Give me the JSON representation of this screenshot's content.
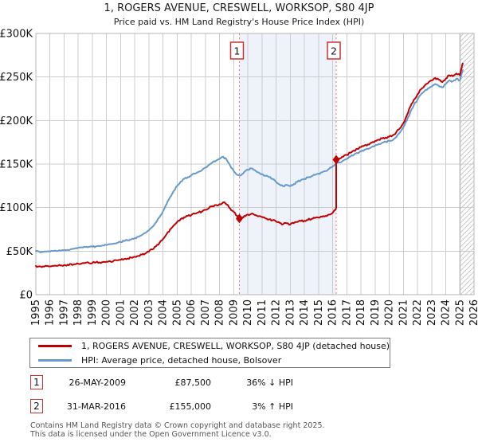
{
  "title": {
    "line1": "1, ROGERS AVENUE, CRESWELL, WORKSOP, S80 4JP",
    "line2": "Price paid vs. HM Land Registry's House Price Index (HPI)"
  },
  "colors": {
    "price_line": "#c00000",
    "hpi_line": "#6699cc",
    "grid": "#cccccc",
    "plot_border": "#b5b5b5",
    "shade": "#eef2fa",
    "sale_dash": "#e87878",
    "marker_border": "#cc3333",
    "hatch": "#c8c8c8"
  },
  "chart_data": {
    "type": "line",
    "title": "Price paid vs. HM Land Registry's House Price Index (HPI)",
    "xlabel": "",
    "ylabel": "",
    "x_axis": {
      "min": 1995,
      "max": 2026,
      "tick_step": 1
    },
    "y_axis": {
      "min": 0,
      "max": 300,
      "unit": "GBP thousands",
      "tick_values": [
        0,
        50,
        100,
        150,
        200,
        250,
        300
      ],
      "tick_labels": [
        "£0",
        "£50K",
        "£100K",
        "£150K",
        "£200K",
        "£250K",
        "£300K"
      ]
    },
    "grid": true,
    "legend_position": "below",
    "shaded_region": {
      "from_year": 2009.4,
      "to_year": 2016.25
    },
    "hatched_future_from_year": 2025,
    "sale_markers": [
      {
        "label": "1",
        "year": 2009.4,
        "price_gbp_k": 87.5
      },
      {
        "label": "2",
        "year": 2016.25,
        "price_gbp_k": 155
      }
    ],
    "series": [
      {
        "name": "HPI: Average price, detached house, Bolsover",
        "color_key": "hpi_line",
        "unit": "GBP thousands",
        "points": [
          [
            1995,
            50
          ],
          [
            1995.25,
            49.5
          ],
          [
            1995.5,
            49
          ],
          [
            1995.75,
            49.5
          ],
          [
            1996,
            49.5
          ],
          [
            1996.25,
            50
          ],
          [
            1996.5,
            50
          ],
          [
            1996.75,
            50.5
          ],
          [
            1997,
            51
          ],
          [
            1997.25,
            51.5
          ],
          [
            1997.5,
            52.5
          ],
          [
            1997.75,
            53
          ],
          [
            1998,
            54
          ],
          [
            1998.25,
            54.5
          ],
          [
            1998.5,
            55
          ],
          [
            1998.75,
            55
          ],
          [
            1999,
            55
          ],
          [
            1999.25,
            55.5
          ],
          [
            1999.5,
            56
          ],
          [
            1999.75,
            56.5
          ],
          [
            2000,
            57
          ],
          [
            2000.25,
            58
          ],
          [
            2000.5,
            58.5
          ],
          [
            2000.75,
            59.5
          ],
          [
            2001,
            60.5
          ],
          [
            2001.25,
            61.5
          ],
          [
            2001.5,
            62.5
          ],
          [
            2001.75,
            63.5
          ],
          [
            2002,
            65
          ],
          [
            2002.25,
            66.5
          ],
          [
            2002.5,
            68.5
          ],
          [
            2002.75,
            71
          ],
          [
            2003,
            74
          ],
          [
            2003.25,
            78
          ],
          [
            2003.5,
            83
          ],
          [
            2003.75,
            89
          ],
          [
            2004,
            96
          ],
          [
            2004.25,
            104
          ],
          [
            2004.5,
            112
          ],
          [
            2004.75,
            119
          ],
          [
            2005,
            125
          ],
          [
            2005.25,
            130
          ],
          [
            2005.5,
            133
          ],
          [
            2005.75,
            135
          ],
          [
            2006,
            137
          ],
          [
            2006.25,
            139
          ],
          [
            2006.5,
            141
          ],
          [
            2006.75,
            143
          ],
          [
            2007,
            146
          ],
          [
            2007.25,
            149
          ],
          [
            2007.5,
            152
          ],
          [
            2007.75,
            154
          ],
          [
            2008,
            156
          ],
          [
            2008.25,
            158.5
          ],
          [
            2008.5,
            155
          ],
          [
            2008.75,
            148
          ],
          [
            2009,
            142
          ],
          [
            2009.25,
            137.5
          ],
          [
            2009.4,
            136.7
          ],
          [
            2009.6,
            138.5
          ],
          [
            2009.75,
            141
          ],
          [
            2010,
            143.5
          ],
          [
            2010.25,
            145
          ],
          [
            2010.5,
            143
          ],
          [
            2010.75,
            140.5
          ],
          [
            2011,
            138.5
          ],
          [
            2011.25,
            136.5
          ],
          [
            2011.5,
            135
          ],
          [
            2011.75,
            133
          ],
          [
            2012,
            129.5
          ],
          [
            2012.25,
            126.5
          ],
          [
            2012.5,
            124.5
          ],
          [
            2012.75,
            126
          ],
          [
            2013,
            124.5
          ],
          [
            2013.25,
            127
          ],
          [
            2013.5,
            129.5
          ],
          [
            2013.75,
            131.5
          ],
          [
            2014,
            133
          ],
          [
            2014.25,
            134.5
          ],
          [
            2014.5,
            136
          ],
          [
            2014.75,
            137.5
          ],
          [
            2015,
            139
          ],
          [
            2015.25,
            140.5
          ],
          [
            2015.5,
            142
          ],
          [
            2015.75,
            144.5
          ],
          [
            2016,
            147.5
          ],
          [
            2016.25,
            150.4
          ],
          [
            2016.5,
            152
          ],
          [
            2016.75,
            154
          ],
          [
            2017,
            156
          ],
          [
            2017.25,
            158.5
          ],
          [
            2017.5,
            160.5
          ],
          [
            2017.75,
            162.5
          ],
          [
            2018,
            164.5
          ],
          [
            2018.25,
            166.5
          ],
          [
            2018.5,
            167.5
          ],
          [
            2018.75,
            169.5
          ],
          [
            2019,
            171.5
          ],
          [
            2019.25,
            173
          ],
          [
            2019.5,
            174.5
          ],
          [
            2019.75,
            175.5
          ],
          [
            2020,
            176.5
          ],
          [
            2020.25,
            177.5
          ],
          [
            2020.5,
            181
          ],
          [
            2020.75,
            186
          ],
          [
            2021,
            192
          ],
          [
            2021.25,
            200
          ],
          [
            2021.5,
            210
          ],
          [
            2021.75,
            218
          ],
          [
            2022,
            224
          ],
          [
            2022.25,
            230
          ],
          [
            2022.5,
            234
          ],
          [
            2022.75,
            237
          ],
          [
            2023,
            239
          ],
          [
            2023.25,
            242
          ],
          [
            2023.5,
            240
          ],
          [
            2023.75,
            238
          ],
          [
            2024,
            242
          ],
          [
            2024.25,
            246
          ],
          [
            2024.5,
            245
          ],
          [
            2024.75,
            248
          ],
          [
            2025,
            246
          ],
          [
            2025.1,
            252
          ],
          [
            2025.2,
            258
          ]
        ]
      },
      {
        "name": "1, ROGERS AVENUE, CRESWELL, WORKSOP, S80 4JP (detached house)",
        "color_key": "price_line",
        "unit": "GBP thousands",
        "points": [
          [
            1995,
            33
          ],
          [
            1995.25,
            32.5
          ],
          [
            1995.5,
            32.5
          ],
          [
            1995.75,
            33
          ],
          [
            1996,
            32.5
          ],
          [
            1996.25,
            33
          ],
          [
            1996.5,
            33
          ],
          [
            1996.75,
            33.5
          ],
          [
            1997,
            34
          ],
          [
            1997.25,
            34.5
          ],
          [
            1997.5,
            35
          ],
          [
            1997.75,
            35
          ],
          [
            1998,
            35.5
          ],
          [
            1998.25,
            36
          ],
          [
            1998.5,
            36.5
          ],
          [
            1998.75,
            36.5
          ],
          [
            1999,
            36.5
          ],
          [
            1999.25,
            37
          ],
          [
            1999.5,
            37
          ],
          [
            1999.75,
            37.5
          ],
          [
            2000,
            38
          ],
          [
            2000.25,
            38.5
          ],
          [
            2000.5,
            39
          ],
          [
            2000.75,
            39.5
          ],
          [
            2001,
            40
          ],
          [
            2001.25,
            41
          ],
          [
            2001.5,
            41.5
          ],
          [
            2001.75,
            42.5
          ],
          [
            2002,
            43.5
          ],
          [
            2002.25,
            44.5
          ],
          [
            2002.5,
            46
          ],
          [
            2002.75,
            47.5
          ],
          [
            2003,
            49.5
          ],
          [
            2003.25,
            52
          ],
          [
            2003.5,
            55.5
          ],
          [
            2003.75,
            59.5
          ],
          [
            2004,
            64
          ],
          [
            2004.25,
            69.5
          ],
          [
            2004.5,
            75
          ],
          [
            2004.75,
            79.5
          ],
          [
            2005,
            83.5
          ],
          [
            2005.25,
            87
          ],
          [
            2005.5,
            89
          ],
          [
            2005.75,
            90.5
          ],
          [
            2006,
            91.5
          ],
          [
            2006.25,
            93
          ],
          [
            2006.5,
            94.5
          ],
          [
            2006.75,
            95.5
          ],
          [
            2007,
            97.5
          ],
          [
            2007.25,
            99.5
          ],
          [
            2007.5,
            101.5
          ],
          [
            2007.75,
            103
          ],
          [
            2008,
            104
          ],
          [
            2008.25,
            106
          ],
          [
            2008.5,
            103.5
          ],
          [
            2008.75,
            99
          ],
          [
            2009,
            95
          ],
          [
            2009.25,
            90.5
          ],
          [
            2009.4,
            87.5
          ],
          [
            2009.6,
            89
          ],
          [
            2009.75,
            90.5
          ],
          [
            2010,
            92
          ],
          [
            2010.25,
            93
          ],
          [
            2010.5,
            91.5
          ],
          [
            2010.75,
            90
          ],
          [
            2011,
            89
          ],
          [
            2011.25,
            87.5
          ],
          [
            2011.5,
            86.5
          ],
          [
            2011.75,
            85.5
          ],
          [
            2012,
            84
          ],
          [
            2012.25,
            82.5
          ],
          [
            2012.5,
            81
          ],
          [
            2012.75,
            82
          ],
          [
            2013,
            80.5
          ],
          [
            2013.25,
            82
          ],
          [
            2013.5,
            83.5
          ],
          [
            2013.75,
            84.5
          ],
          [
            2014,
            85
          ],
          [
            2014.25,
            86
          ],
          [
            2014.5,
            87
          ],
          [
            2014.75,
            88
          ],
          [
            2015,
            88.5
          ],
          [
            2015.25,
            89.5
          ],
          [
            2015.5,
            90.5
          ],
          [
            2015.75,
            92
          ],
          [
            2016,
            94
          ],
          [
            2016.2,
            97.5
          ],
          [
            2016.25,
            100
          ],
          [
            2016.25,
            155
          ],
          [
            2016.5,
            156.5
          ],
          [
            2016.75,
            158.5
          ],
          [
            2017,
            160.5
          ],
          [
            2017.25,
            163
          ],
          [
            2017.5,
            165.5
          ],
          [
            2017.75,
            167.5
          ],
          [
            2018,
            169.5
          ],
          [
            2018.25,
            171.5
          ],
          [
            2018.5,
            172.5
          ],
          [
            2018.75,
            174.5
          ],
          [
            2019,
            176.5
          ],
          [
            2019.25,
            178
          ],
          [
            2019.5,
            179.5
          ],
          [
            2019.75,
            180.5
          ],
          [
            2020,
            181.5
          ],
          [
            2020.25,
            183
          ],
          [
            2020.5,
            186.5
          ],
          [
            2020.75,
            191
          ],
          [
            2021,
            197
          ],
          [
            2021.25,
            206
          ],
          [
            2021.5,
            216
          ],
          [
            2021.75,
            224
          ],
          [
            2022,
            230
          ],
          [
            2022.25,
            236
          ],
          [
            2022.5,
            240
          ],
          [
            2022.75,
            243
          ],
          [
            2023,
            246
          ],
          [
            2023.25,
            249
          ],
          [
            2023.5,
            247
          ],
          [
            2023.75,
            244
          ],
          [
            2024,
            248
          ],
          [
            2024.25,
            252
          ],
          [
            2024.5,
            251
          ],
          [
            2024.75,
            254
          ],
          [
            2025,
            252
          ],
          [
            2025.1,
            259
          ],
          [
            2025.2,
            265.5
          ]
        ]
      }
    ]
  },
  "legend": {
    "items": [
      {
        "label": "1, ROGERS AVENUE, CRESWELL, WORKSOP, S80 4JP (detached house)",
        "color_key": "price_line"
      },
      {
        "label": "HPI: Average price, detached house, Bolsover",
        "color_key": "hpi_line"
      }
    ]
  },
  "transactions": [
    {
      "marker": "1",
      "date": "26-MAY-2009",
      "price": "£87,500",
      "vs_hpi": "36% ↓ HPI"
    },
    {
      "marker": "2",
      "date": "31-MAR-2016",
      "price": "£155,000",
      "vs_hpi": "3% ↑ HPI"
    }
  ],
  "footer": {
    "line1": "Contains HM Land Registry data © Crown copyright and database right 2025.",
    "line2": "This data is licensed under the Open Government Licence v3.0."
  }
}
